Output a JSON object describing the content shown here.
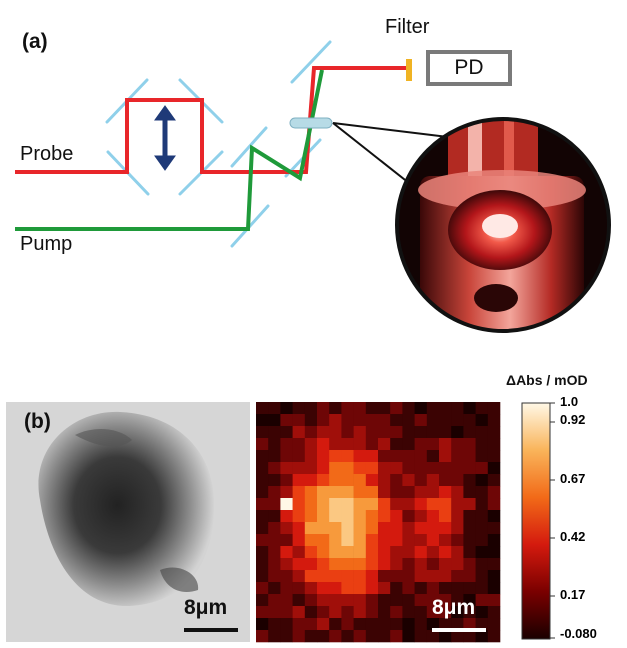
{
  "panel_a": {
    "label": "(a)",
    "probe_label": "Probe",
    "pump_label": "Pump",
    "filter_label": "Filter",
    "detector_label": "PD"
  },
  "panel_b": {
    "label": "(b)",
    "left_scalebar": "8μm",
    "right_scalebar": "8μm",
    "colorbar_title": "ΔAbs / mOD",
    "colorbar_ticks": [
      "1.0",
      "0.92",
      "0.67",
      "0.42",
      "0.17",
      "-0.080"
    ]
  },
  "colors": {
    "probe_beam": "#e8262a",
    "pump_beam": "#1f9a3a",
    "mirror": "#8fd0ea",
    "translation_arrow": "#1f3a78",
    "filter": "#f0b323",
    "detector_border": "#7a7a7a"
  }
}
